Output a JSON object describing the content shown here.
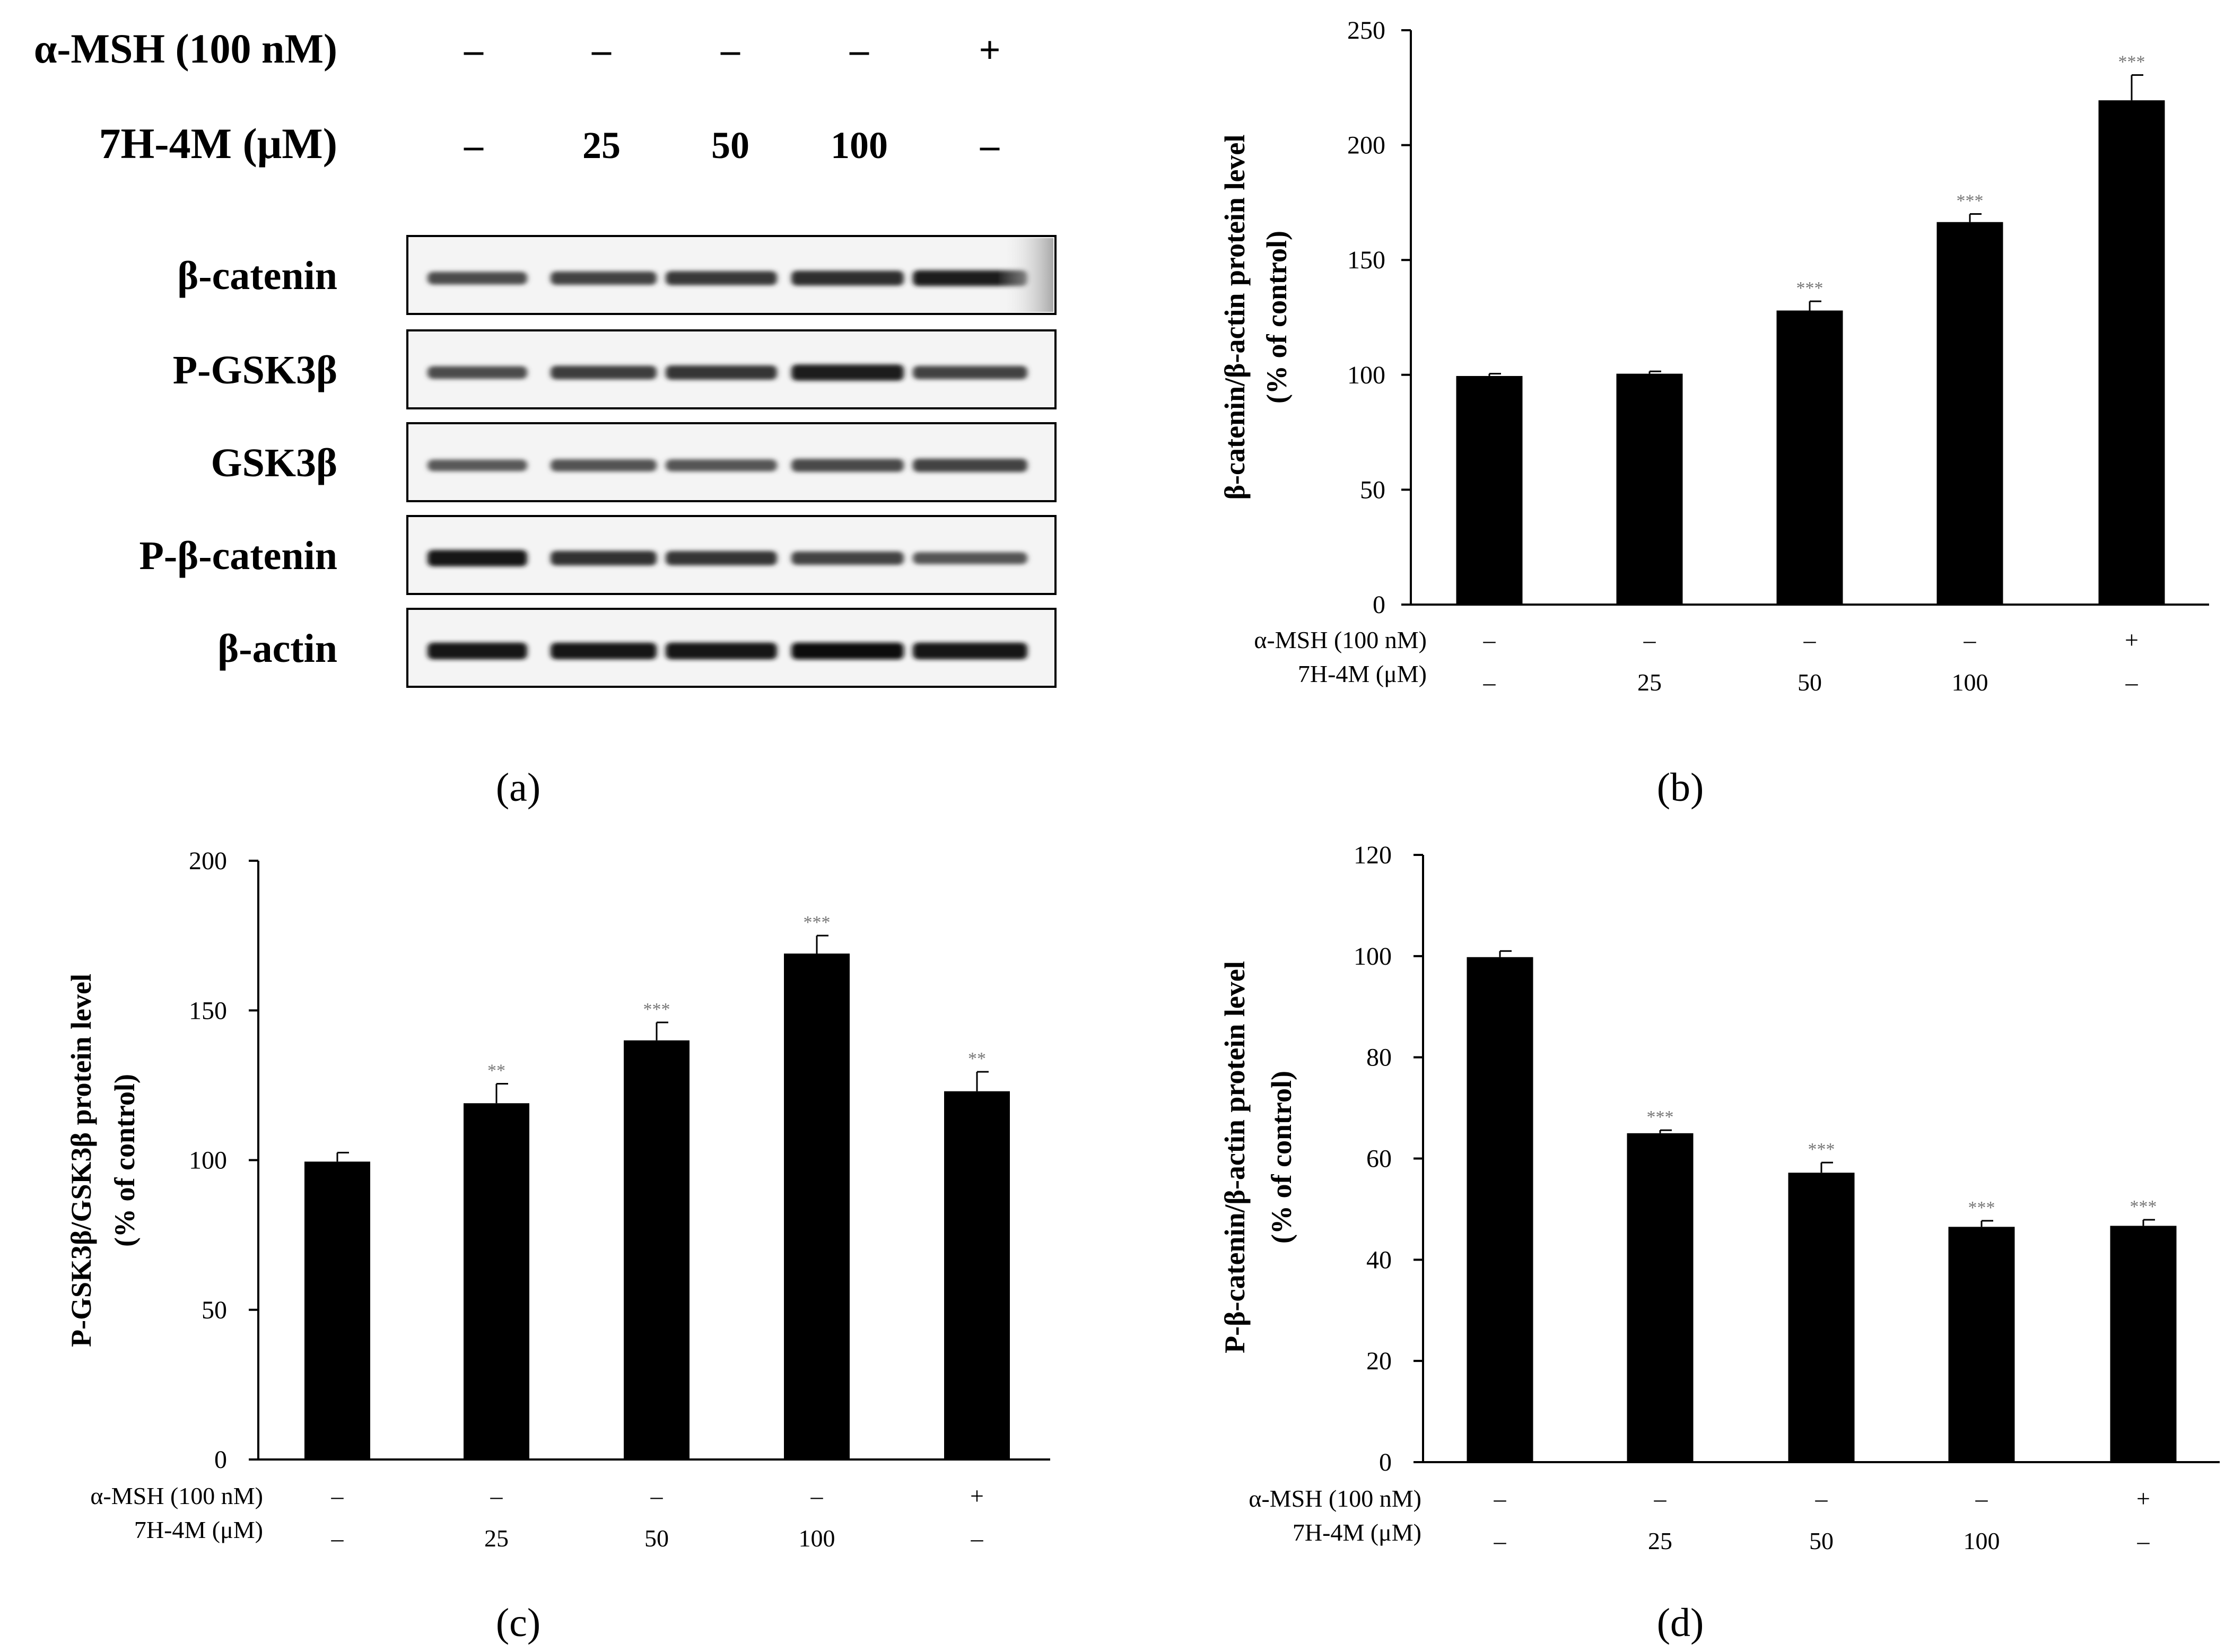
{
  "panels": {
    "a": {
      "label": "(a)",
      "treatment_rows": [
        {
          "label": "α-MSH (100 nM)",
          "values": [
            "–",
            "–",
            "–",
            "–",
            "+"
          ]
        },
        {
          "label": "7H-4M (μM)",
          "values": [
            "–",
            "25",
            "50",
            "100",
            "–"
          ]
        }
      ],
      "blots": [
        {
          "label": "β-catenin",
          "intensities": [
            0.55,
            0.62,
            0.7,
            0.78,
            0.88
          ]
        },
        {
          "label": "P-GSK3β",
          "intensities": [
            0.55,
            0.65,
            0.72,
            0.92,
            0.62
          ]
        },
        {
          "label": "GSK3β",
          "intensities": [
            0.45,
            0.5,
            0.48,
            0.58,
            0.62
          ]
        },
        {
          "label": "P-β-catenin",
          "intensities": [
            0.95,
            0.75,
            0.72,
            0.62,
            0.48
          ]
        },
        {
          "label": "β-actin",
          "intensities": [
            0.98,
            0.97,
            0.98,
            0.99,
            0.98
          ]
        }
      ]
    },
    "b": {
      "label": "(b)"
    },
    "c": {
      "label": "(c)"
    },
    "d": {
      "label": "(d)"
    }
  },
  "chart_data": [
    {
      "panel": "b",
      "type": "bar",
      "ylabel_line1": "β-catenin/β-actin protein level",
      "ylabel_line2": "(% of control)",
      "ylim": [
        0,
        250
      ],
      "yticks": [
        "0",
        "50",
        "100",
        "150",
        "200",
        "250"
      ],
      "values": [
        99.5,
        100.5,
        128,
        166.5,
        219.5
      ],
      "errors": [
        1.0,
        1.0,
        4.0,
        3.5,
        11.0
      ],
      "significance": [
        "",
        "",
        "***",
        "***",
        "***"
      ],
      "treatment_rows": [
        {
          "label": "α-MSH (100 nM)",
          "values": [
            "–",
            "–",
            "–",
            "–",
            "+"
          ]
        },
        {
          "label": "7H-4M (μM)",
          "values": [
            "–",
            "25",
            "50",
            "100",
            "–"
          ]
        }
      ]
    },
    {
      "panel": "c",
      "type": "bar",
      "ylabel_line1": "P-GSK3β/GSK3β protein level",
      "ylabel_line2": "(% of control)",
      "ylim": [
        0,
        200
      ],
      "yticks": [
        "0",
        "50",
        "100",
        "150",
        "200"
      ],
      "values": [
        99.5,
        119,
        140,
        169,
        123
      ],
      "errors": [
        3.0,
        6.5,
        6.0,
        6.0,
        6.5
      ],
      "significance": [
        "",
        "**",
        "***",
        "***",
        "**"
      ],
      "treatment_rows": [
        {
          "label": "α-MSH (100 nM)",
          "values": [
            "–",
            "–",
            "–",
            "–",
            "+"
          ]
        },
        {
          "label": "7H-4M (μM)",
          "values": [
            "–",
            "25",
            "50",
            "100",
            "–"
          ]
        }
      ]
    },
    {
      "panel": "d",
      "type": "bar",
      "ylabel_line1": "P-β-catenin/β-actin protein level",
      "ylabel_line2": "(% of control)",
      "ylim": [
        0,
        120
      ],
      "yticks": [
        "0",
        "20",
        "40",
        "60",
        "80",
        "100",
        "120"
      ],
      "values": [
        99.8,
        65,
        57.2,
        46.5,
        46.7
      ],
      "errors": [
        1.2,
        0.6,
        2.0,
        1.2,
        1.2
      ],
      "significance": [
        "",
        "***",
        "***",
        "***",
        "***"
      ],
      "treatment_rows": [
        {
          "label": "α-MSH (100 nM)",
          "values": [
            "–",
            "–",
            "–",
            "–",
            "+"
          ]
        },
        {
          "label": "7H-4M (μM)",
          "values": [
            "–",
            "25",
            "50",
            "100",
            "–"
          ]
        }
      ]
    }
  ]
}
